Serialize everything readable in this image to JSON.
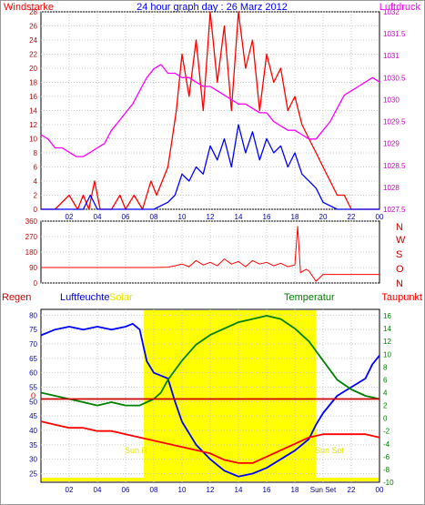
{
  "chart_data": [
    {
      "type": "line",
      "title": "24 hour graph day : 26 Marz 2012",
      "left_axis_title": "Windstarke",
      "right_axis_title": "Luftdruck",
      "x_ticks": [
        "02",
        "04",
        "06",
        "08",
        "10",
        "12",
        "14",
        "16",
        "18",
        "20",
        "22",
        "00"
      ],
      "y_left_ticks": [
        "0",
        "2",
        "4",
        "6",
        "8",
        "10",
        "12",
        "14",
        "16",
        "18",
        "20",
        "22",
        "24",
        "26",
        "28"
      ],
      "y_left_range": [
        0,
        28
      ],
      "y_right_ticks": [
        "1027.5",
        "1028",
        "1028.5",
        "1029",
        "1029.5",
        "1030",
        "1030.5",
        "1031",
        "1031.5",
        "1032"
      ],
      "y_right_range": [
        1027.5,
        1032
      ],
      "x_range_hours": [
        0,
        24
      ],
      "grid": true,
      "series": [
        {
          "color": "#ff0000",
          "axis": "left",
          "x": [
            0,
            1,
            2,
            2.6,
            3,
            3.4,
            3.8,
            4.2,
            5,
            5.6,
            6,
            6.6,
            7.2,
            7.8,
            8.2,
            8.6,
            9,
            9.3,
            9.6,
            10,
            10.5,
            11,
            11.5,
            12,
            12.5,
            13,
            13.5,
            14,
            14.5,
            15,
            15.5,
            16,
            16.5,
            17,
            17.5,
            18,
            18.5,
            19,
            19.5,
            20,
            20.5,
            21,
            21.5,
            22,
            23,
            24
          ],
          "y": [
            0,
            0,
            2,
            0,
            2,
            0,
            4,
            0,
            0,
            2,
            0,
            2,
            0,
            4,
            2,
            4,
            6,
            10,
            14,
            22,
            16,
            24,
            14,
            28,
            18,
            26,
            14,
            28,
            20,
            24,
            14,
            22,
            18,
            20,
            14,
            16,
            12,
            10,
            8,
            6,
            4,
            2,
            2,
            0,
            0,
            0
          ]
        },
        {
          "color": "#0000ff",
          "axis": "left",
          "x": [
            0,
            3,
            3.5,
            4,
            6,
            8,
            9,
            9.5,
            10,
            10.5,
            11,
            11.5,
            12,
            12.5,
            13,
            13.5,
            14,
            14.5,
            15,
            15.5,
            16,
            16.5,
            17,
            17.5,
            18,
            18.5,
            19,
            19.5,
            20,
            21,
            24
          ],
          "y": [
            0,
            0,
            2,
            0,
            0,
            0,
            1,
            2,
            5,
            4,
            6,
            5,
            9,
            7,
            10,
            6,
            12,
            8,
            11,
            7,
            10,
            8,
            9,
            6,
            8,
            5,
            4,
            3,
            1,
            0,
            0
          ]
        },
        {
          "color": "#ff00ff",
          "axis": "right",
          "x": [
            0,
            0.5,
            1,
            1.5,
            2,
            2.5,
            3,
            3.5,
            4,
            4.5,
            5,
            5.5,
            6,
            6.5,
            7,
            7.5,
            8,
            8.5,
            9,
            9.5,
            10,
            10.5,
            11,
            11.5,
            12,
            12.5,
            13,
            13.5,
            14,
            14.5,
            15,
            15.5,
            16,
            16.5,
            17,
            17.5,
            18,
            18.5,
            19,
            19.5,
            20,
            20.5,
            21,
            21.5,
            22,
            22.5,
            23,
            23.5,
            24
          ],
          "y": [
            1029.2,
            1029.1,
            1028.9,
            1028.9,
            1028.8,
            1028.7,
            1028.7,
            1028.8,
            1028.9,
            1029.0,
            1029.3,
            1029.5,
            1029.7,
            1029.9,
            1030.2,
            1030.5,
            1030.7,
            1030.8,
            1030.6,
            1030.6,
            1030.5,
            1030.5,
            1030.4,
            1030.3,
            1030.3,
            1030.2,
            1030.1,
            1030.0,
            1029.9,
            1029.9,
            1029.8,
            1029.7,
            1029.7,
            1029.5,
            1029.4,
            1029.3,
            1029.3,
            1029.2,
            1029.1,
            1029.1,
            1029.3,
            1029.5,
            1029.8,
            1030.1,
            1030.2,
            1030.3,
            1030.4,
            1030.5,
            1030.4
          ]
        }
      ]
    },
    {
      "type": "line",
      "y_ticks": [
        "0",
        "90",
        "180",
        "270",
        "360"
      ],
      "y_range": [
        0,
        360
      ],
      "right_labels": [
        "N",
        "W",
        "S",
        "O",
        "N"
      ],
      "series": [
        {
          "color": "#ff0000",
          "x": [
            0,
            2,
            4,
            6,
            8,
            9,
            9.5,
            10,
            10.5,
            11,
            11.5,
            12,
            12.5,
            13,
            13.5,
            14,
            14.5,
            15,
            15.5,
            16,
            16.5,
            17,
            17.5,
            18,
            18.2,
            18.4,
            18.8,
            19,
            19.5,
            20,
            21,
            22,
            23,
            24
          ],
          "y": [
            90,
            90,
            90,
            90,
            90,
            92,
            100,
            110,
            95,
            130,
            105,
            120,
            100,
            140,
            110,
            125,
            95,
            130,
            110,
            120,
            100,
            115,
            95,
            105,
            330,
            60,
            80,
            70,
            10,
            50,
            50,
            50,
            50,
            50
          ]
        }
      ]
    },
    {
      "type": "line",
      "left_axis_title": "Regen",
      "secondary_left_title": "Luftfeuchte",
      "solar_label": "Solar",
      "right_axis_title": "Temperatur",
      "far_right_title": "Taupunkt",
      "sunrise_label": "Sun R",
      "sunset_label": "Sun Set",
      "zero_marker": "0",
      "y_left_ticks": [
        "25",
        "30",
        "35",
        "40",
        "45",
        "50",
        "55",
        "60",
        "65",
        "70",
        "75",
        "80"
      ],
      "y_left_range": [
        22,
        82
      ],
      "y_right_ticks": [
        "-10",
        "-8",
        "-6",
        "-4",
        "-2",
        "0",
        "2",
        "4",
        "6",
        "8",
        "10",
        "12",
        "14",
        "16"
      ],
      "y_right_range": [
        -10,
        17
      ],
      "x_ticks": [
        "02",
        "04",
        "06",
        "08",
        "10",
        "12",
        "14",
        "16",
        "18",
        "Sun Set",
        "22",
        "00"
      ],
      "x_range_hours": [
        0,
        24
      ],
      "solar_band_hours": [
        7.3,
        19.5
      ],
      "series": [
        {
          "color": "#0000ff",
          "axis": "left",
          "x": [
            0,
            1,
            2,
            3,
            4,
            5,
            6,
            6.5,
            7,
            7.5,
            8,
            8.5,
            9,
            9.5,
            10,
            11,
            12,
            13,
            14,
            15,
            16,
            17,
            18,
            19,
            19.5,
            20,
            21,
            22,
            23,
            23.5,
            24
          ],
          "y": [
            73,
            75,
            76,
            75,
            76,
            75,
            76,
            77,
            75,
            64,
            60,
            59,
            58,
            50,
            43,
            35,
            30,
            26,
            24,
            25,
            27,
            30,
            33,
            37,
            42,
            46,
            52,
            55,
            58,
            63,
            66
          ]
        },
        {
          "color": "#008000",
          "axis": "right",
          "x": [
            0,
            1,
            2,
            3,
            4,
            5,
            6,
            7,
            7.5,
            8,
            8.5,
            9,
            10,
            11,
            12,
            13,
            14,
            15,
            16,
            17,
            18,
            19,
            20,
            21,
            22,
            23,
            24
          ],
          "y": [
            4,
            3.5,
            3,
            2.5,
            2,
            2.5,
            2,
            2,
            2.5,
            3,
            4,
            6,
            9,
            11.5,
            13,
            14,
            15,
            15.5,
            16,
            15.5,
            14,
            12,
            9,
            6,
            4.5,
            3.5,
            3
          ]
        },
        {
          "color": "#ff0000",
          "axis": "right",
          "x": [
            0,
            1,
            2,
            3,
            4,
            5,
            6,
            7,
            8,
            9,
            10,
            11,
            12,
            13,
            14,
            15,
            16,
            17,
            18,
            19,
            20,
            21,
            22,
            23,
            24
          ],
          "y": [
            -0.5,
            -1,
            -1.5,
            -1.5,
            -2,
            -2,
            -2.5,
            -3,
            -3.5,
            -4,
            -4.5,
            -5,
            -5.5,
            -6.5,
            -7,
            -7,
            -6,
            -5,
            -4,
            -3,
            -2.5,
            -2.5,
            -2.5,
            -2.5,
            -3
          ]
        },
        {
          "color": "#cc0000",
          "axis": "right",
          "x": [
            0,
            24
          ],
          "y": [
            3,
            3
          ]
        }
      ]
    }
  ]
}
